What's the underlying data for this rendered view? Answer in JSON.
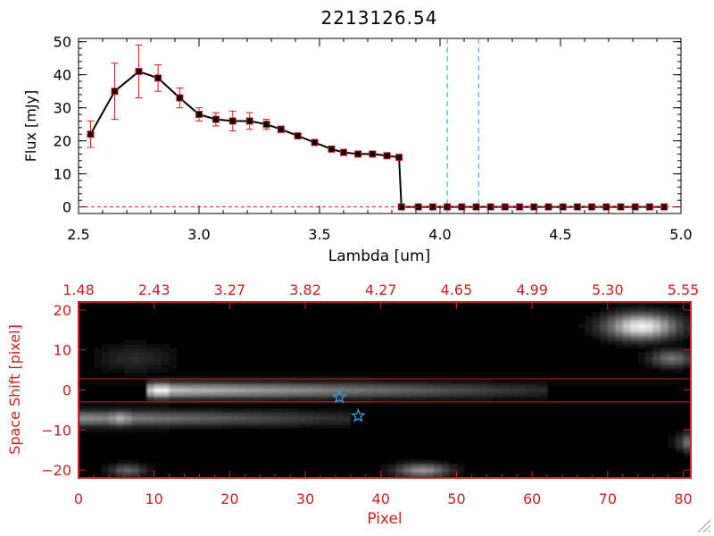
{
  "chart_data": [
    {
      "type": "line",
      "title": "2213126.54",
      "xlabel": "Lambda [um]",
      "ylabel": "Flux [mJy]",
      "xlim": [
        2.5,
        5.0
      ],
      "ylim": [
        -2,
        51
      ],
      "xticks": [
        "2.5",
        "3.0",
        "3.5",
        "4.0",
        "4.5",
        "5.0"
      ],
      "xtick_values": [
        2.5,
        3.0,
        3.5,
        4.0,
        4.5,
        5.0
      ],
      "yticks": [
        "0",
        "10",
        "20",
        "30",
        "40",
        "50"
      ],
      "ytick_values": [
        0,
        10,
        20,
        30,
        40,
        50
      ],
      "colors": {
        "line": "#000000",
        "marker_edge": "#cc2222",
        "error": "#cc2222",
        "vline": "#3399dd"
      },
      "series": [
        {
          "name": "flux",
          "x": [
            2.55,
            2.65,
            2.75,
            2.83,
            2.92,
            3.0,
            3.07,
            3.14,
            3.21,
            3.28,
            3.34,
            3.41,
            3.48,
            3.55,
            3.6,
            3.66,
            3.72,
            3.78,
            3.83,
            3.84,
            3.91,
            3.97,
            4.03,
            4.09,
            4.15,
            4.21,
            4.27,
            4.33,
            4.39,
            4.45,
            4.51,
            4.57,
            4.63,
            4.69,
            4.75,
            4.81,
            4.87,
            4.93
          ],
          "y": [
            22,
            35,
            41,
            39,
            33,
            28,
            26.5,
            26,
            26,
            25,
            23.5,
            21.5,
            19.5,
            17.5,
            16.5,
            16,
            16,
            15.5,
            15,
            0,
            0,
            0,
            0,
            0,
            0,
            0,
            0,
            0,
            0,
            0,
            0,
            0,
            0,
            0,
            0,
            0,
            0,
            0
          ],
          "err": [
            4,
            8.5,
            8,
            4,
            3,
            2,
            2,
            3,
            2.5,
            1.5,
            1,
            0.8,
            0.5,
            0.5,
            0.5,
            0.5,
            0.5,
            0.5,
            0.5,
            0,
            0,
            0,
            0,
            0,
            0,
            0,
            0,
            0,
            0,
            0,
            0,
            0,
            0,
            0,
            0,
            0,
            0,
            0
          ]
        }
      ],
      "vlines": [
        4.03,
        4.16
      ]
    },
    {
      "type": "heatmap",
      "title": "",
      "xlabel": "Pixel",
      "ylabel": "Space Shift [pixel]",
      "xlim": [
        0,
        81
      ],
      "ylim": [
        -22,
        22
      ],
      "xticks": [
        "0",
        "10",
        "20",
        "30",
        "40",
        "50",
        "60",
        "70",
        "80"
      ],
      "xtick_values": [
        0,
        10,
        20,
        30,
        40,
        50,
        60,
        70,
        80
      ],
      "yticks": [
        "−20",
        "−10",
        "0",
        "10",
        "20"
      ],
      "ytick_values": [
        -20,
        -10,
        0,
        10,
        20
      ],
      "top_axis_ticks": [
        "1.48",
        "2.43",
        "3.27",
        "3.82",
        "4.27",
        "4.65",
        "4.99",
        "5.30",
        "5.55"
      ],
      "top_axis_values": [
        0,
        10,
        20,
        30,
        40,
        50,
        60,
        70,
        80
      ],
      "extraction_band": [
        -3,
        2.8
      ],
      "markers": [
        {
          "name": "star-1",
          "x": 34.5,
          "y": -1.8
        },
        {
          "name": "star-2",
          "x": 37.0,
          "y": -6.5
        }
      ],
      "sources": [
        {
          "name": "main-trace",
          "x0": 9,
          "x1": 62,
          "y": 0,
          "peak_x": 10.5,
          "peak": 1.0,
          "tail": 0.7
        },
        {
          "name": "lower-trace",
          "x0": 0,
          "x1": 36,
          "y": -7,
          "peak_x": 5,
          "peak": 0.7,
          "tail": 0.45
        },
        {
          "name": "upper-right",
          "cx": 73.5,
          "cy": 16,
          "sx": 3.2,
          "sy": 2.2,
          "peak": 0.95
        },
        {
          "name": "right-mid",
          "cx": 77.5,
          "cy": 8,
          "sx": 2.0,
          "sy": 1.5,
          "peak": 0.45
        },
        {
          "name": "right-low",
          "cx": 80.5,
          "cy": -13,
          "sx": 1.4,
          "sy": 1.6,
          "peak": 0.55
        },
        {
          "name": "bottom-center",
          "cx": 44.5,
          "cy": -20.5,
          "sx": 2.5,
          "sy": 1.1,
          "peak": 0.6
        },
        {
          "name": "bottom-left",
          "cx": 5.5,
          "cy": -20,
          "sx": 1.7,
          "sy": 1.0,
          "peak": 0.4
        },
        {
          "name": "upper-left",
          "cx": 7,
          "cy": 8,
          "sx": 3.5,
          "sy": 2.5,
          "peak": 0.16
        }
      ],
      "colors": {
        "axis": "#cc2222",
        "band": "#cc2222",
        "star": "#3399dd"
      }
    }
  ]
}
